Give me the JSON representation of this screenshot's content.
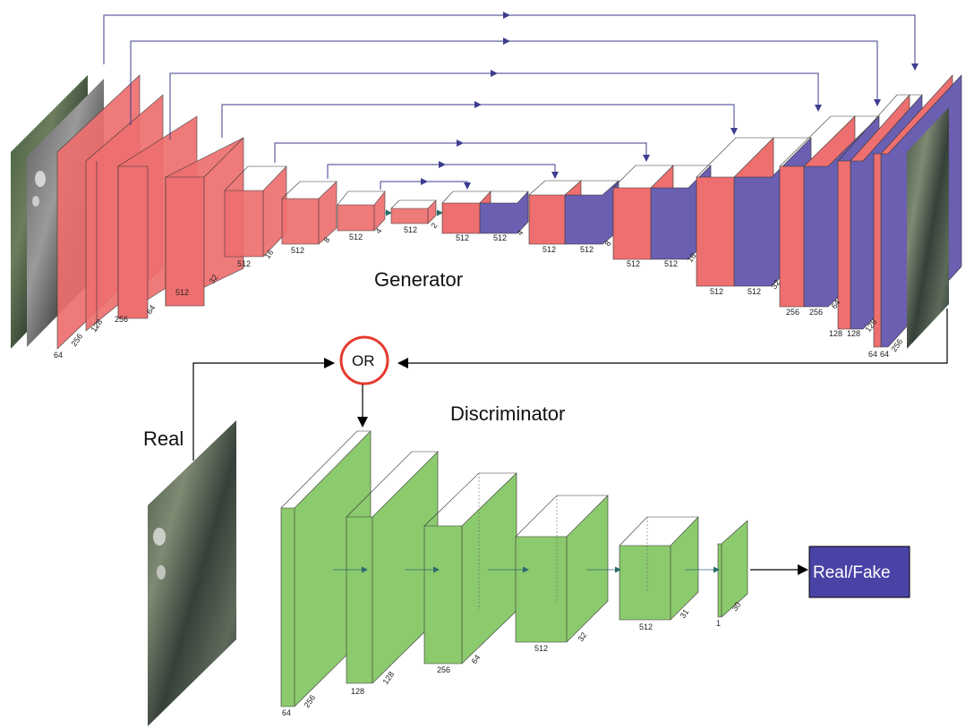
{
  "generator": {
    "title": "Generator",
    "input_block_labels": [
      [
        "64",
        "256"
      ],
      [
        "128"
      ],
      [
        "256",
        "64"
      ],
      [
        "512",
        "32"
      ]
    ],
    "encoder_labels": [
      [
        "512",
        "16"
      ],
      [
        "512",
        "8"
      ],
      [
        "512",
        "4"
      ],
      [
        "512",
        "2"
      ]
    ],
    "decoder_labels": [
      [
        "512",
        "512",
        "4"
      ],
      [
        "512",
        "512",
        "8"
      ],
      [
        "512",
        "512",
        "16"
      ],
      [
        "512",
        "512",
        "32"
      ],
      [
        "256",
        "256",
        "64"
      ],
      [
        "128",
        "128",
        "128"
      ],
      [
        "64",
        "64",
        "256"
      ]
    ],
    "encoder_color": "#ee6f6f",
    "decoder_color": "#6a5fb0",
    "skip_color": "#3d3d8f"
  },
  "selector": {
    "label": "OR",
    "ring_color": "#e53b2f"
  },
  "discriminator": {
    "title": "Discriminator",
    "real_label": "Real",
    "block_labels": [
      [
        "64",
        "256"
      ],
      [
        "128",
        "128"
      ],
      [
        "256",
        "64"
      ],
      [
        "512",
        "32"
      ],
      [
        "512",
        "31"
      ],
      [
        "1",
        "30"
      ]
    ],
    "block_color": "#8cca6e",
    "output_label": "Real/Fake",
    "output_color": "#4a43a6"
  }
}
